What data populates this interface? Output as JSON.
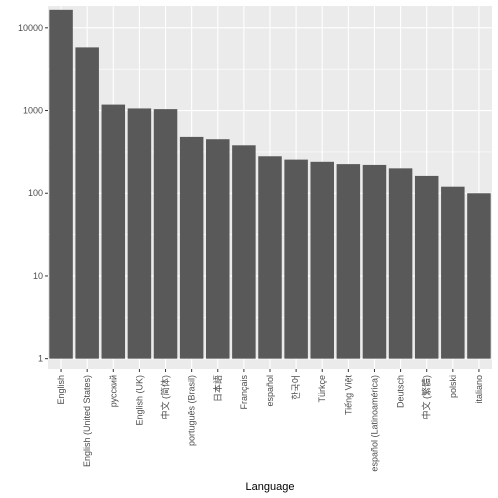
{
  "chart_data": {
    "type": "bar",
    "title": "",
    "xlabel": "Language",
    "ylabel": "",
    "y_scale": "log10",
    "ylim": [
      1,
      17000
    ],
    "y_ticks": [
      1,
      10,
      100,
      1000,
      10000
    ],
    "y_tick_labels": [
      "1",
      "10",
      "100",
      "1000",
      "10000"
    ],
    "grid": true,
    "panel_background": "#ebebeb",
    "grid_color": "#ffffff",
    "bar_color": "#595959",
    "categories": [
      "English",
      "English (United States)",
      "русский",
      "English (UK)",
      "中文 (简体)",
      "português (Brasil)",
      "日本語",
      "Français",
      "español",
      "한국어",
      "Türkçe",
      "Tiếng Việt",
      "español (Latinoamérica)",
      "Deutsch",
      "中文 (繁體)",
      "polski",
      "italiano"
    ],
    "values": [
      16500,
      5800,
      1180,
      1060,
      1040,
      480,
      450,
      380,
      280,
      255,
      240,
      225,
      220,
      200,
      162,
      120,
      100
    ]
  }
}
